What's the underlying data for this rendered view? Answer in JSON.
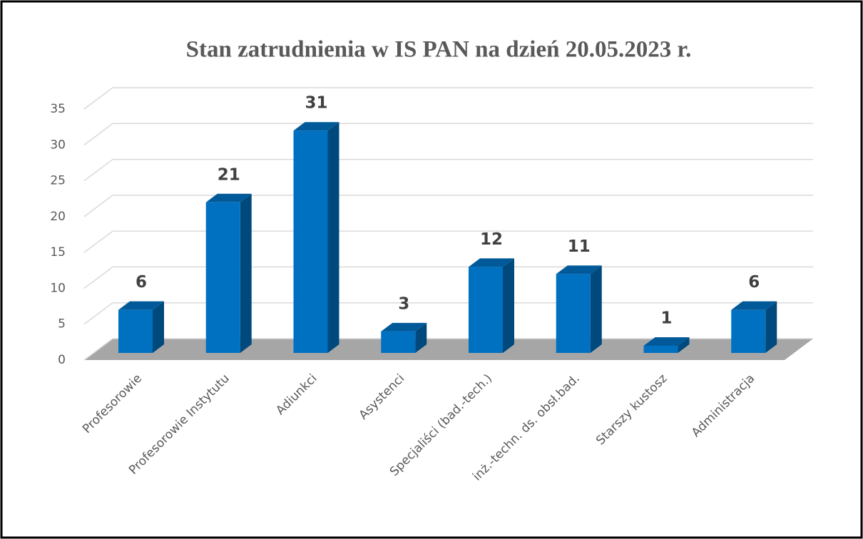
{
  "chart_data": {
    "type": "bar3d",
    "title": "Stan zatrudnienia  w IS PAN na dzień 20.05.2023 r.",
    "categories": [
      "Profesorowie",
      "Profesorowie Instytutu",
      "Adiunkci",
      "Asystenci",
      "Specjaliści (bad.-tech.)",
      "inż.-techn. ds. obsł.bad.",
      "Starszy kustosz",
      "Administracja"
    ],
    "values": [
      6,
      21,
      31,
      3,
      12,
      11,
      1,
      6
    ],
    "color": "#0070c0",
    "ylim": [
      0,
      35
    ],
    "yticks": [
      0,
      5,
      10,
      15,
      20,
      25,
      30,
      35
    ],
    "grid": true
  }
}
